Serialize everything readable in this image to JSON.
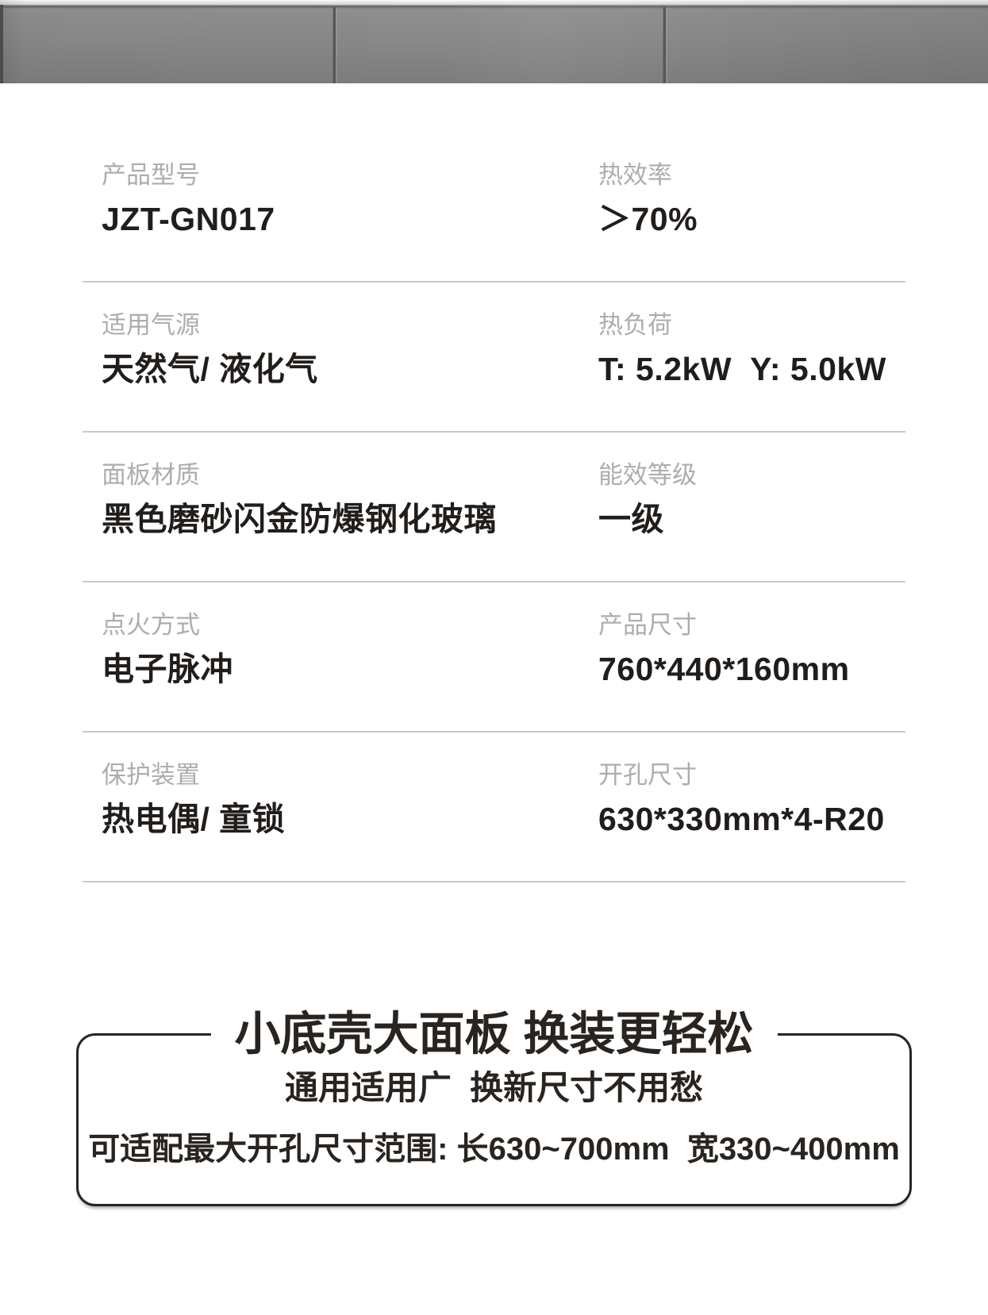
{
  "banner": {
    "description": "gray-cabinet-photo-strip",
    "colors": {
      "panel_gray": "#868686",
      "top_strip": "#d2d2d2",
      "seam": "#575757"
    }
  },
  "specs": {
    "rows": [
      {
        "left": {
          "label": "产品型号",
          "value": "JZT-GN017"
        },
        "right": {
          "label": "热效率",
          "value": "＞70%"
        }
      },
      {
        "left": {
          "label": "适用气源",
          "value": "天然气/ 液化气"
        },
        "right": {
          "label": "热负荷",
          "value": "T: 5.2kW  Y: 5.0kW"
        }
      },
      {
        "left": {
          "label": "面板材质",
          "value": "黑色磨砂闪金防爆钢化玻璃"
        },
        "right": {
          "label": "能效等级",
          "value": "一级"
        }
      },
      {
        "left": {
          "label": "点火方式",
          "value": "电子脉冲"
        },
        "right": {
          "label": "产品尺寸",
          "value": "760*440*160mm"
        }
      },
      {
        "left": {
          "label": "保护装置",
          "value": "热电偶/ 童锁"
        },
        "right": {
          "label": "开孔尺寸",
          "value": "630*330mm*4-R20"
        }
      }
    ]
  },
  "feature": {
    "title": "小底壳大面板 换装更轻松",
    "subtitle": "通用适用广  换新尺寸不用愁",
    "note": "可适配最大开孔尺寸范围: 长630~700mm  宽330~400mm"
  },
  "colors": {
    "value_text": "#211d1b",
    "label_text": "#adadad",
    "divider": "#c9c9c9",
    "box_border": "#29241f"
  }
}
